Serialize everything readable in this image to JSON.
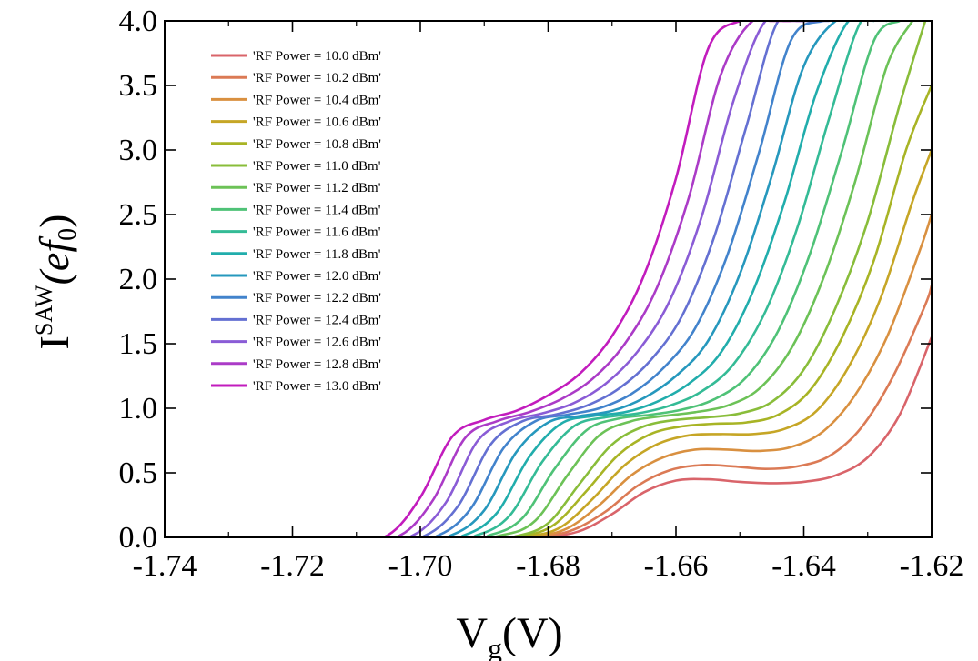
{
  "chart_data": {
    "type": "line",
    "xlabel": {
      "main": "V",
      "sub": "g",
      "tail": "(V)"
    },
    "ylabel": {
      "main": "I",
      "sup": "SAW",
      "tail": "(ef",
      "sub": "0",
      "close": ")"
    },
    "xlim": [
      -1.74,
      -1.62
    ],
    "ylim": [
      0.0,
      4.0
    ],
    "xticks": [
      -1.74,
      -1.72,
      -1.7,
      -1.68,
      -1.66,
      -1.64,
      -1.62
    ],
    "xtick_labels": [
      "-1.74",
      "-1.72",
      "-1.70",
      "-1.68",
      "-1.66",
      "-1.64",
      "-1.62"
    ],
    "yticks": [
      0.0,
      0.5,
      1.0,
      1.5,
      2.0,
      2.5,
      3.0,
      3.5,
      4.0
    ],
    "ytick_labels": [
      "0.0",
      "0.5",
      "1.0",
      "1.5",
      "2.0",
      "2.5",
      "3.0",
      "3.5",
      "4.0"
    ],
    "legend_position": "top-left",
    "series": [
      {
        "name": "'RF Power = 10.0 dBm'",
        "color": "#d9646a",
        "x": [
          -1.74,
          -1.69,
          -1.68,
          -1.675,
          -1.67,
          -1.665,
          -1.66,
          -1.655,
          -1.65,
          -1.645,
          -1.64,
          -1.635,
          -1.63,
          -1.625,
          -1.62
        ],
        "y": [
          0,
          0,
          0.01,
          0.05,
          0.18,
          0.35,
          0.44,
          0.45,
          0.43,
          0.42,
          0.43,
          0.48,
          0.62,
          0.95,
          1.55
        ]
      },
      {
        "name": "'RF Power = 10.2 dBm'",
        "color": "#db7a55",
        "x": [
          -1.74,
          -1.69,
          -1.681,
          -1.676,
          -1.671,
          -1.666,
          -1.661,
          -1.656,
          -1.651,
          -1.646,
          -1.641,
          -1.636,
          -1.631,
          -1.626,
          -1.621,
          -1.62
        ],
        "y": [
          0,
          0,
          0.01,
          0.06,
          0.2,
          0.4,
          0.52,
          0.56,
          0.55,
          0.53,
          0.55,
          0.63,
          0.85,
          1.25,
          1.8,
          1.95
        ]
      },
      {
        "name": "'RF Power = 10.4 dBm'",
        "color": "#d99040",
        "x": [
          -1.74,
          -1.69,
          -1.682,
          -1.677,
          -1.672,
          -1.667,
          -1.662,
          -1.657,
          -1.652,
          -1.647,
          -1.642,
          -1.637,
          -1.632,
          -1.627,
          -1.622,
          -1.62
        ],
        "y": [
          0,
          0,
          0.01,
          0.07,
          0.25,
          0.48,
          0.62,
          0.68,
          0.68,
          0.67,
          0.7,
          0.82,
          1.1,
          1.55,
          2.2,
          2.5
        ]
      },
      {
        "name": "'RF Power = 10.6 dBm'",
        "color": "#c6a626",
        "x": [
          -1.74,
          -1.69,
          -1.683,
          -1.678,
          -1.673,
          -1.668,
          -1.663,
          -1.658,
          -1.653,
          -1.648,
          -1.643,
          -1.638,
          -1.633,
          -1.628,
          -1.623,
          -1.62
        ],
        "y": [
          0,
          0,
          0.01,
          0.08,
          0.3,
          0.56,
          0.72,
          0.79,
          0.8,
          0.8,
          0.84,
          0.98,
          1.32,
          1.85,
          2.6,
          3.0
        ]
      },
      {
        "name": "'RF Power = 10.8 dBm'",
        "color": "#a8b425",
        "x": [
          -1.74,
          -1.69,
          -1.684,
          -1.679,
          -1.674,
          -1.669,
          -1.664,
          -1.659,
          -1.654,
          -1.649,
          -1.644,
          -1.639,
          -1.634,
          -1.629,
          -1.624,
          -1.62
        ],
        "y": [
          0,
          0,
          0.01,
          0.1,
          0.36,
          0.64,
          0.8,
          0.86,
          0.88,
          0.89,
          0.95,
          1.14,
          1.55,
          2.15,
          3.0,
          3.5
        ]
      },
      {
        "name": "'RF Power = 11.0 dBm'",
        "color": "#89bd3a",
        "x": [
          -1.74,
          -1.69,
          -1.685,
          -1.68,
          -1.675,
          -1.67,
          -1.665,
          -1.66,
          -1.655,
          -1.65,
          -1.645,
          -1.64,
          -1.635,
          -1.63,
          -1.625,
          -1.621
        ],
        "y": [
          0,
          0,
          0.01,
          0.11,
          0.42,
          0.72,
          0.86,
          0.91,
          0.93,
          0.96,
          1.05,
          1.3,
          1.78,
          2.45,
          3.35,
          4.0
        ]
      },
      {
        "name": "'RF Power = 11.2 dBm'",
        "color": "#6cc257",
        "x": [
          -1.74,
          -1.695,
          -1.687,
          -1.682,
          -1.677,
          -1.672,
          -1.667,
          -1.662,
          -1.657,
          -1.652,
          -1.647,
          -1.642,
          -1.637,
          -1.632,
          -1.627,
          -1.623
        ],
        "y": [
          0,
          0,
          0.02,
          0.13,
          0.48,
          0.79,
          0.9,
          0.94,
          0.97,
          1.02,
          1.15,
          1.46,
          2.0,
          2.75,
          3.65,
          4.0
        ]
      },
      {
        "name": "'RF Power = 11.4 dBm'",
        "color": "#4fc277",
        "x": [
          -1.74,
          -1.695,
          -1.689,
          -1.684,
          -1.679,
          -1.674,
          -1.669,
          -1.664,
          -1.659,
          -1.654,
          -1.649,
          -1.644,
          -1.639,
          -1.634,
          -1.629,
          -1.625
        ],
        "y": [
          0,
          0,
          0.02,
          0.15,
          0.53,
          0.83,
          0.92,
          0.95,
          0.99,
          1.07,
          1.24,
          1.6,
          2.2,
          3.0,
          3.85,
          4.0
        ]
      },
      {
        "name": "'RF Power = 11.6 dBm'",
        "color": "#34bb96",
        "x": [
          -1.74,
          -1.697,
          -1.691,
          -1.686,
          -1.681,
          -1.676,
          -1.671,
          -1.666,
          -1.661,
          -1.656,
          -1.651,
          -1.646,
          -1.641,
          -1.636,
          -1.631,
          -1.627
        ],
        "y": [
          0,
          0,
          0.02,
          0.17,
          0.58,
          0.86,
          0.93,
          0.96,
          1.02,
          1.13,
          1.34,
          1.75,
          2.4,
          3.25,
          4.0,
          4.0
        ]
      },
      {
        "name": "'RF Power = 11.8 dBm'",
        "color": "#21adac",
        "x": [
          -1.74,
          -1.699,
          -1.693,
          -1.688,
          -1.683,
          -1.678,
          -1.673,
          -1.668,
          -1.663,
          -1.658,
          -1.653,
          -1.648,
          -1.643,
          -1.638,
          -1.633,
          -1.629
        ],
        "y": [
          0,
          0,
          0.02,
          0.19,
          0.62,
          0.88,
          0.94,
          0.97,
          1.05,
          1.19,
          1.43,
          1.9,
          2.6,
          3.45,
          4.0,
          4.0
        ]
      },
      {
        "name": "'RF Power = 12.0 dBm'",
        "color": "#2698bd",
        "x": [
          -1.74,
          -1.701,
          -1.695,
          -1.69,
          -1.685,
          -1.68,
          -1.675,
          -1.67,
          -1.665,
          -1.66,
          -1.655,
          -1.65,
          -1.645,
          -1.64,
          -1.635,
          -1.631
        ],
        "y": [
          0,
          0,
          0.02,
          0.21,
          0.66,
          0.89,
          0.94,
          0.98,
          1.08,
          1.25,
          1.52,
          2.04,
          2.8,
          3.65,
          4.0,
          4.0
        ]
      },
      {
        "name": "'RF Power = 12.2 dBm'",
        "color": "#4283cc",
        "x": [
          -1.74,
          -1.703,
          -1.697,
          -1.692,
          -1.687,
          -1.682,
          -1.677,
          -1.672,
          -1.667,
          -1.662,
          -1.657,
          -1.652,
          -1.647,
          -1.642,
          -1.637,
          -1.633
        ],
        "y": [
          0,
          0,
          0.02,
          0.23,
          0.69,
          0.9,
          0.95,
          1.0,
          1.11,
          1.31,
          1.62,
          2.18,
          2.98,
          3.85,
          4.0,
          4.0
        ]
      },
      {
        "name": "'RF Power = 12.4 dBm'",
        "color": "#6470d2",
        "x": [
          -1.74,
          -1.705,
          -1.699,
          -1.694,
          -1.689,
          -1.684,
          -1.679,
          -1.674,
          -1.669,
          -1.664,
          -1.659,
          -1.654,
          -1.649,
          -1.644,
          -1.639,
          -1.636
        ],
        "y": [
          0,
          0,
          0.02,
          0.25,
          0.72,
          0.9,
          0.95,
          1.02,
          1.15,
          1.37,
          1.72,
          2.33,
          3.18,
          4.0,
          4.0,
          4.0
        ]
      },
      {
        "name": "'RF Power = 12.6 dBm'",
        "color": "#8a5cd6",
        "x": [
          -1.74,
          -1.707,
          -1.701,
          -1.696,
          -1.691,
          -1.686,
          -1.681,
          -1.676,
          -1.671,
          -1.666,
          -1.661,
          -1.656,
          -1.651,
          -1.646,
          -1.641,
          -1.638
        ],
        "y": [
          0,
          0,
          0.02,
          0.27,
          0.75,
          0.9,
          0.96,
          1.04,
          1.19,
          1.44,
          1.83,
          2.48,
          3.38,
          4.0,
          4.0,
          4.0
        ]
      },
      {
        "name": "'RF Power = 12.8 dBm'",
        "color": "#ab3bc7",
        "x": [
          -1.74,
          -1.709,
          -1.703,
          -1.698,
          -1.693,
          -1.688,
          -1.683,
          -1.678,
          -1.673,
          -1.668,
          -1.663,
          -1.658,
          -1.653,
          -1.648,
          -1.643,
          -1.64
        ],
        "y": [
          0,
          0,
          0.02,
          0.29,
          0.77,
          0.9,
          0.97,
          1.07,
          1.23,
          1.5,
          1.93,
          2.63,
          3.58,
          4.0,
          4.0,
          4.0
        ]
      },
      {
        "name": "'RF Power = 13.0 dBm'",
        "color": "#c21cbd",
        "x": [
          -1.74,
          -1.711,
          -1.705,
          -1.7,
          -1.695,
          -1.69,
          -1.685,
          -1.68,
          -1.675,
          -1.67,
          -1.665,
          -1.66,
          -1.655,
          -1.65,
          -1.645,
          -1.642
        ],
        "y": [
          0,
          0,
          0.02,
          0.31,
          0.78,
          0.91,
          0.98,
          1.1,
          1.27,
          1.56,
          2.03,
          2.78,
          3.78,
          4.0,
          4.0,
          4.0
        ]
      }
    ]
  }
}
